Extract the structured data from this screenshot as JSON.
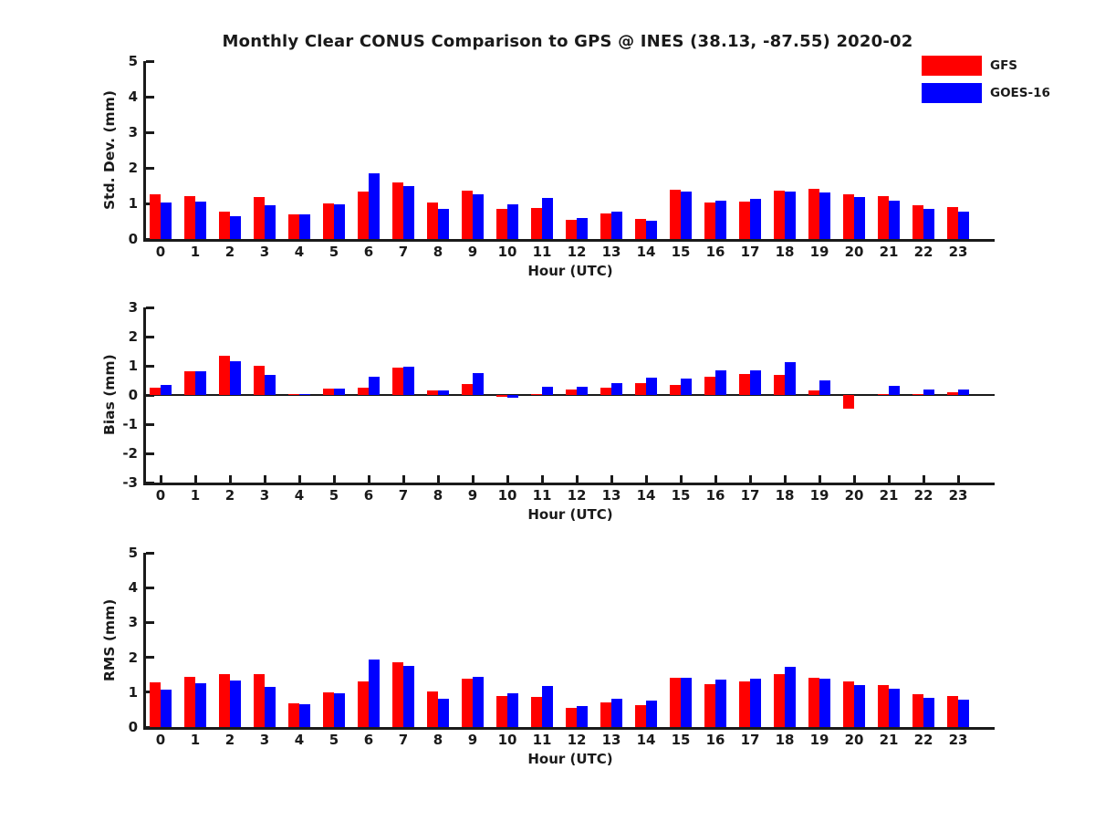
{
  "title": "Monthly Clear CONUS Comparison to GPS @ INES (38.13, -87.55) 2020-02",
  "legend": {
    "position": "top-right",
    "entries": [
      {
        "label": "GFS",
        "color": "#ff0000"
      },
      {
        "label": "GOES-16",
        "color": "#0000ff"
      }
    ]
  },
  "axis_color": "#1a1a1a",
  "chart_data": [
    {
      "name": "std_dev",
      "type": "bar",
      "title": "",
      "xlabel": "Hour (UTC)",
      "ylabel": "Std. Dev. (mm)",
      "ylim": [
        0,
        5
      ],
      "yticks": [
        0,
        1,
        2,
        3,
        4,
        5
      ],
      "grid": false,
      "categories": [
        0,
        1,
        2,
        3,
        4,
        5,
        6,
        7,
        8,
        9,
        10,
        11,
        12,
        13,
        14,
        15,
        16,
        17,
        18,
        19,
        20,
        21,
        22,
        23
      ],
      "series": [
        {
          "name": "GFS",
          "color": "#ff0000",
          "values": [
            1.25,
            1.2,
            0.78,
            1.18,
            0.7,
            1.0,
            1.33,
            1.58,
            1.02,
            1.35,
            0.85,
            0.88,
            0.55,
            0.71,
            0.56,
            1.38,
            1.02,
            1.06,
            1.36,
            1.42,
            1.25,
            1.21,
            0.94,
            0.91
          ]
        },
        {
          "name": "GOES-16",
          "color": "#0000ff",
          "values": [
            1.03,
            1.05,
            0.63,
            0.95,
            0.68,
            0.97,
            1.85,
            1.48,
            0.84,
            1.25,
            0.97,
            1.15,
            0.58,
            0.78,
            0.52,
            1.33,
            1.07,
            1.14,
            1.33,
            1.32,
            1.19,
            1.09,
            0.84,
            0.78
          ]
        }
      ]
    },
    {
      "name": "bias",
      "type": "bar",
      "title": "",
      "xlabel": "Hour (UTC)",
      "ylabel": "Bias (mm)",
      "ylim": [
        -3,
        3
      ],
      "yticks": [
        -3,
        -2,
        -1,
        0,
        1,
        2,
        3
      ],
      "grid": false,
      "categories": [
        0,
        1,
        2,
        3,
        4,
        5,
        6,
        7,
        8,
        9,
        10,
        11,
        12,
        13,
        14,
        15,
        16,
        17,
        18,
        19,
        20,
        21,
        22,
        23
      ],
      "series": [
        {
          "name": "GFS",
          "color": "#ff0000",
          "values": [
            0.26,
            0.8,
            1.35,
            0.99,
            0.02,
            0.21,
            0.24,
            0.94,
            0.17,
            0.38,
            -0.06,
            0.02,
            0.18,
            0.25,
            0.42,
            0.35,
            0.64,
            0.72,
            0.69,
            0.15,
            -0.48,
            0.02,
            0.04,
            0.09
          ]
        },
        {
          "name": "GOES-16",
          "color": "#0000ff",
          "values": [
            0.35,
            0.8,
            1.16,
            0.7,
            0.04,
            0.23,
            0.63,
            0.97,
            0.15,
            0.75,
            -0.08,
            0.27,
            0.28,
            0.4,
            0.6,
            0.56,
            0.85,
            0.83,
            1.13,
            0.5,
            0.0,
            0.32,
            0.2,
            0.18
          ]
        }
      ]
    },
    {
      "name": "rms",
      "type": "bar",
      "title": "",
      "xlabel": "Hour (UTC)",
      "ylabel": "RMS (mm)",
      "ylim": [
        0,
        5
      ],
      "yticks": [
        0,
        1,
        2,
        3,
        4,
        5
      ],
      "grid": false,
      "categories": [
        0,
        1,
        2,
        3,
        4,
        5,
        6,
        7,
        8,
        9,
        10,
        11,
        12,
        13,
        14,
        15,
        16,
        17,
        18,
        19,
        20,
        21,
        22,
        23
      ],
      "series": [
        {
          "name": "GFS",
          "color": "#ff0000",
          "values": [
            1.28,
            1.45,
            1.53,
            1.53,
            0.68,
            1.0,
            1.32,
            1.85,
            1.01,
            1.38,
            0.88,
            0.87,
            0.56,
            0.72,
            0.64,
            1.42,
            1.23,
            1.3,
            1.52,
            1.42,
            1.32,
            1.21,
            0.93,
            0.9
          ]
        },
        {
          "name": "GOES-16",
          "color": "#0000ff",
          "values": [
            1.07,
            1.27,
            1.34,
            1.14,
            0.66,
            0.96,
            1.95,
            1.75,
            0.82,
            1.44,
            0.96,
            1.17,
            0.61,
            0.82,
            0.77,
            1.42,
            1.35,
            1.4,
            1.73,
            1.4,
            1.2,
            1.11,
            0.83,
            0.79
          ]
        }
      ]
    }
  ]
}
